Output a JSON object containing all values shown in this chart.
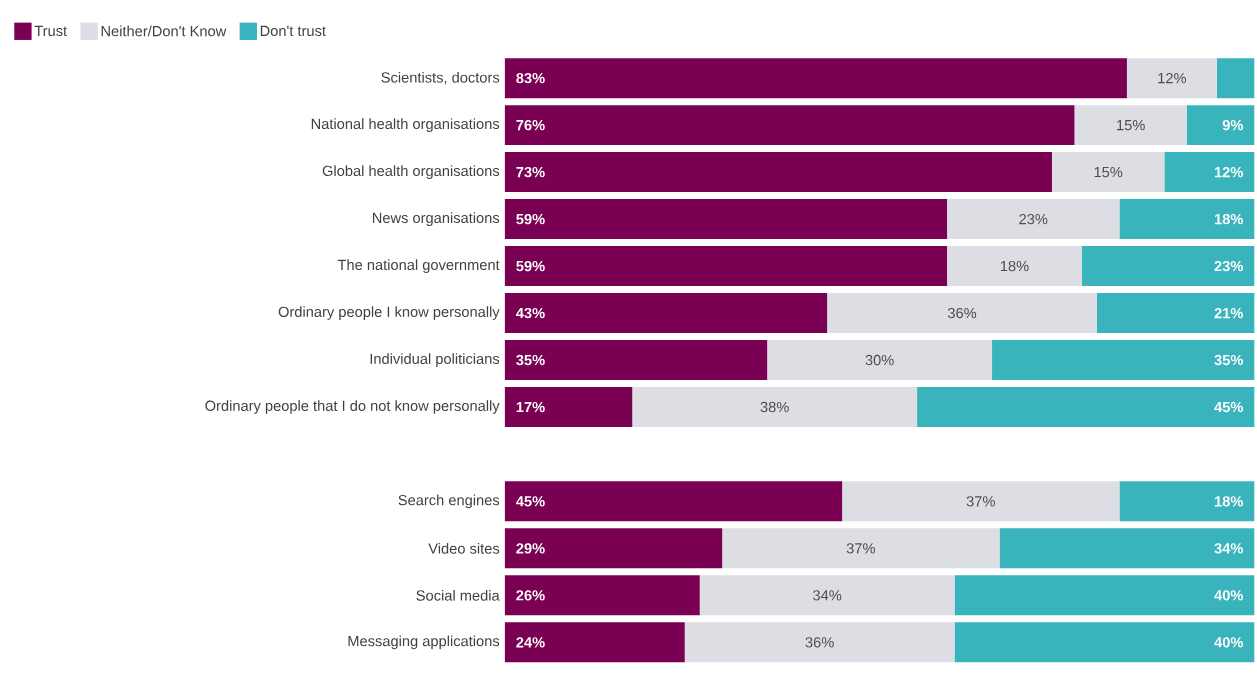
{
  "chart_data": [
    {
      "type": "bar",
      "orientation": "horizontal",
      "stacked": true,
      "legend": "top left",
      "tick_labels": "y",
      "xlim": [
        0,
        100
      ],
      "categories": [
        "Scientists, doctors",
        "National health organisations",
        "Global health organisations",
        "News organisations",
        "The national government",
        "Ordinary people I know personally",
        "Individual politicians",
        "Ordinary people that I do not know personally"
      ],
      "series": [
        {
          "name": "Trust",
          "color": "#7a0054",
          "values": [
            83,
            76,
            73,
            59,
            59,
            43,
            35,
            17
          ],
          "value_labels": [
            "83%",
            "76%",
            "73%",
            "59%",
            "59%",
            "43%",
            "35%",
            "17%"
          ]
        },
        {
          "name": "Neither/Don't Know",
          "color": "#dcdee3",
          "values": [
            12,
            15,
            15,
            23,
            18,
            36,
            30,
            38
          ],
          "value_labels": [
            "12%",
            "15%",
            "15%",
            "23%",
            "18%",
            "36%",
            "30%",
            "38%"
          ]
        },
        {
          "name": "Don't trust",
          "color": "#3ab4bc",
          "values": [
            5,
            9,
            12,
            18,
            23,
            21,
            35,
            45
          ],
          "value_labels": [
            null,
            "9%",
            "12%",
            "18%",
            "23%",
            "21%",
            "35%",
            "45%"
          ]
        }
      ]
    },
    {
      "type": "bar",
      "orientation": "horizontal",
      "stacked": true,
      "tick_labels": "y",
      "xlim": [
        0,
        100
      ],
      "categories": [
        "Search engines",
        "Video sites",
        "Social media",
        "Messaging applications"
      ],
      "series": [
        {
          "color": "#7a0054",
          "values": [
            45,
            29,
            26,
            24
          ],
          "value_labels": [
            "45%",
            "29%",
            "26%",
            "24%"
          ]
        },
        {
          "color": "#dcdee3",
          "values": [
            37,
            37,
            34,
            36
          ],
          "value_labels": [
            "37%",
            "37%",
            "34%",
            "36%"
          ]
        },
        {
          "color": "#3ab4bc",
          "values": [
            18,
            34,
            40,
            40
          ],
          "value_labels": [
            "18%",
            "34%",
            "40%",
            "40%"
          ]
        }
      ]
    }
  ]
}
